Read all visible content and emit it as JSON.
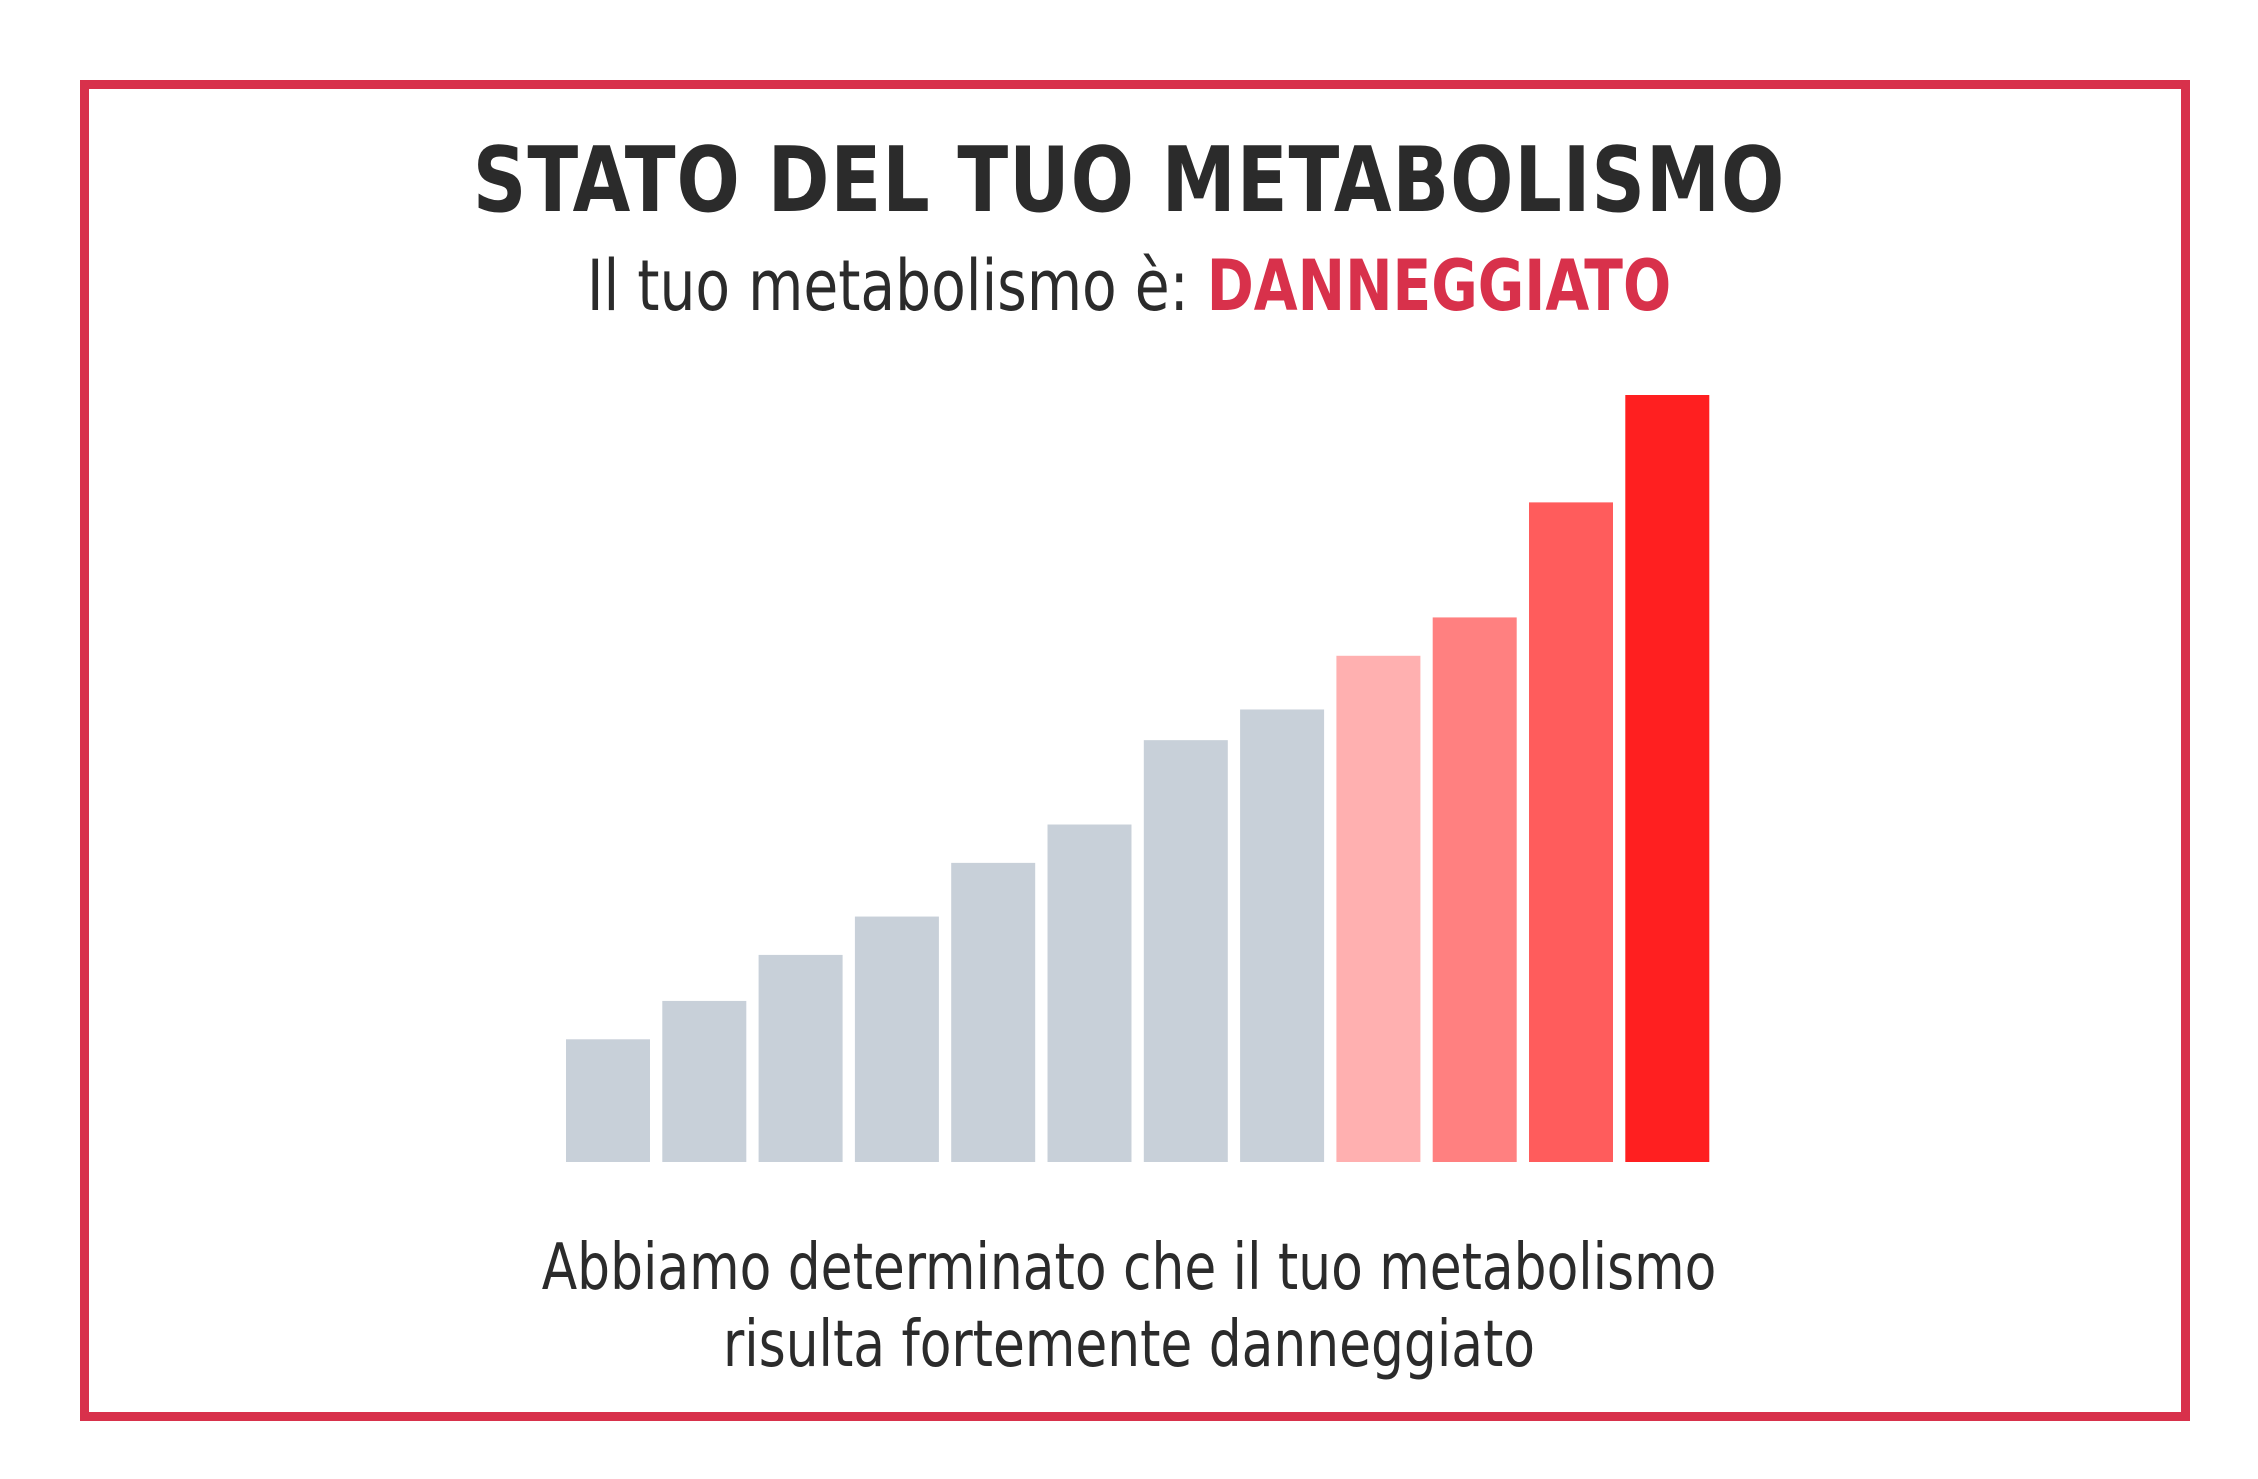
{
  "header": {
    "title": "STATO DEL TUO METABOLISMO",
    "subtitle_prefix": "Il tuo metabolismo è: ",
    "status": "DANNEGGIATO"
  },
  "description": {
    "line1": "Abbiamo determinato che il tuo metabolismo",
    "line2": "risulta fortemente danneggiato"
  },
  "colors": {
    "accent": "#d8314b",
    "text": "#2b2b2b",
    "grey_bar": "#c8d0d9"
  },
  "chart_data": {
    "type": "bar",
    "title": "",
    "xlabel": "",
    "ylabel": "",
    "ylim": [
      0,
      100
    ],
    "grid": false,
    "values": [
      16,
      21,
      27,
      32,
      39,
      44,
      55,
      59,
      66,
      71,
      86,
      100
    ],
    "bar_colors": [
      "#c8d0d9",
      "#c8d0d9",
      "#c8d0d9",
      "#c8d0d9",
      "#c8d0d9",
      "#c8d0d9",
      "#c8d0d9",
      "#c8d0d9",
      "#ffb0b0",
      "#ff8080",
      "#ff5c5c",
      "#ff1f20"
    ]
  }
}
